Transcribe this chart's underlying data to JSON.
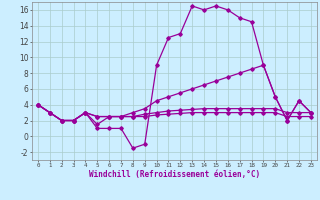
{
  "xlabel": "Windchill (Refroidissement éolien,°C)",
  "background_color": "#cceeff",
  "grid_color": "#aacccc",
  "line_color": "#990099",
  "xlim": [
    -0.5,
    23.5
  ],
  "ylim": [
    -3,
    17
  ],
  "xticks": [
    0,
    1,
    2,
    3,
    4,
    5,
    6,
    7,
    8,
    9,
    10,
    11,
    12,
    13,
    14,
    15,
    16,
    17,
    18,
    19,
    20,
    21,
    22,
    23
  ],
  "yticks": [
    -2,
    0,
    2,
    4,
    6,
    8,
    10,
    12,
    14,
    16
  ],
  "series1": [
    4.0,
    3.0,
    2.0,
    2.0,
    3.0,
    1.0,
    1.0,
    1.0,
    -1.5,
    -1.0,
    9.0,
    12.5,
    13.0,
    16.5,
    16.0,
    16.5,
    16.0,
    15.0,
    14.5,
    9.0,
    5.0,
    2.0,
    4.5,
    3.0
  ],
  "series2": [
    4.0,
    3.0,
    2.0,
    2.0,
    3.0,
    1.5,
    2.5,
    2.5,
    3.0,
    3.5,
    4.5,
    5.0,
    5.5,
    6.0,
    6.5,
    7.0,
    7.5,
    8.0,
    8.5,
    9.0,
    5.0,
    2.0,
    4.5,
    3.0
  ],
  "series3": [
    4.0,
    3.0,
    2.0,
    2.0,
    3.0,
    2.5,
    2.5,
    2.5,
    2.5,
    2.8,
    3.0,
    3.2,
    3.3,
    3.4,
    3.5,
    3.5,
    3.5,
    3.5,
    3.5,
    3.5,
    3.5,
    3.0,
    3.0,
    3.0
  ],
  "series4": [
    4.0,
    3.0,
    2.0,
    2.0,
    3.0,
    2.5,
    2.5,
    2.5,
    2.5,
    2.5,
    2.7,
    2.8,
    2.9,
    3.0,
    3.0,
    3.0,
    3.0,
    3.0,
    3.0,
    3.0,
    3.0,
    2.5,
    2.5,
    2.5
  ]
}
